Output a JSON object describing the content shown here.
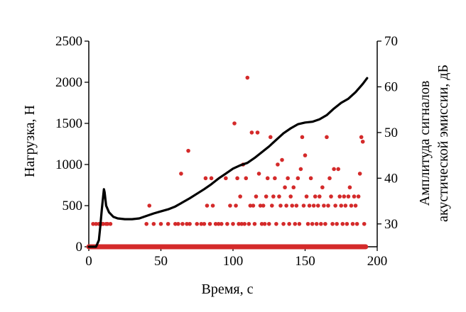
{
  "chart_data": {
    "type": "line",
    "title": "",
    "xlabel": "Время, с",
    "ylabel": "Нагрузка, Н",
    "y2label_lines": [
      "Амплитуда сигналов",
      "акустической эмиссии, дБ"
    ],
    "xlim": [
      0,
      200
    ],
    "ylim": [
      0,
      2500
    ],
    "y2lim": [
      25,
      70
    ],
    "xticks": [
      0,
      50,
      100,
      150,
      200
    ],
    "yticks": [
      0,
      500,
      1000,
      1500,
      2000,
      2500
    ],
    "y2ticks": [
      30,
      40,
      50,
      60,
      70
    ],
    "grid": false,
    "series": [
      {
        "role": "load",
        "axis": "left",
        "style": "line",
        "color": "#000000",
        "points": [
          [
            0,
            0
          ],
          [
            5,
            0
          ],
          [
            7,
            80
          ],
          [
            8,
            250
          ],
          [
            9,
            450
          ],
          [
            10,
            620
          ],
          [
            10.5,
            700
          ],
          [
            11,
            660
          ],
          [
            12,
            500
          ],
          [
            14,
            420
          ],
          [
            17,
            365
          ],
          [
            20,
            345
          ],
          [
            25,
            335
          ],
          [
            30,
            335
          ],
          [
            35,
            345
          ],
          [
            40,
            375
          ],
          [
            45,
            405
          ],
          [
            50,
            430
          ],
          [
            55,
            455
          ],
          [
            60,
            490
          ],
          [
            65,
            540
          ],
          [
            70,
            590
          ],
          [
            75,
            645
          ],
          [
            80,
            700
          ],
          [
            85,
            760
          ],
          [
            90,
            830
          ],
          [
            95,
            890
          ],
          [
            100,
            950
          ],
          [
            105,
            990
          ],
          [
            110,
            1020
          ],
          [
            115,
            1080
          ],
          [
            120,
            1150
          ],
          [
            125,
            1220
          ],
          [
            130,
            1300
          ],
          [
            135,
            1380
          ],
          [
            140,
            1440
          ],
          [
            145,
            1490
          ],
          [
            150,
            1510
          ],
          [
            155,
            1520
          ],
          [
            160,
            1550
          ],
          [
            165,
            1600
          ],
          [
            170,
            1680
          ],
          [
            175,
            1750
          ],
          [
            180,
            1800
          ],
          [
            185,
            1880
          ],
          [
            190,
            1980
          ],
          [
            193,
            2050
          ]
        ]
      },
      {
        "role": "acoustic_emission",
        "axis": "right",
        "style": "scatter",
        "color": "#d42a2a",
        "points": [
          [
            3,
            30
          ],
          [
            5,
            30
          ],
          [
            7,
            30
          ],
          [
            9,
            30
          ],
          [
            10,
            30
          ],
          [
            12,
            30
          ],
          [
            13,
            30
          ],
          [
            15,
            30
          ],
          [
            40,
            30
          ],
          [
            42,
            34
          ],
          [
            45,
            30
          ],
          [
            50,
            30
          ],
          [
            55,
            30
          ],
          [
            60,
            30
          ],
          [
            62,
            30
          ],
          [
            64,
            41
          ],
          [
            65,
            30
          ],
          [
            68,
            30
          ],
          [
            69,
            46
          ],
          [
            70,
            30
          ],
          [
            75,
            30
          ],
          [
            78,
            30
          ],
          [
            80,
            30
          ],
          [
            81,
            40
          ],
          [
            82,
            34
          ],
          [
            84,
            30
          ],
          [
            85,
            40
          ],
          [
            86,
            34
          ],
          [
            88,
            30
          ],
          [
            90,
            30
          ],
          [
            92,
            30
          ],
          [
            95,
            40
          ],
          [
            96,
            30
          ],
          [
            98,
            34
          ],
          [
            100,
            30
          ],
          [
            101,
            52
          ],
          [
            102,
            34
          ],
          [
            103,
            40
          ],
          [
            104,
            30
          ],
          [
            105,
            36
          ],
          [
            106,
            30
          ],
          [
            107,
            43
          ],
          [
            108,
            30
          ],
          [
            109,
            40
          ],
          [
            110,
            62
          ],
          [
            111,
            30
          ],
          [
            112,
            34
          ],
          [
            113,
            50
          ],
          [
            114,
            34
          ],
          [
            115,
            30
          ],
          [
            116,
            36
          ],
          [
            117,
            50
          ],
          [
            118,
            41
          ],
          [
            119,
            34
          ],
          [
            120,
            30
          ],
          [
            121,
            34
          ],
          [
            122,
            30
          ],
          [
            123,
            36
          ],
          [
            124,
            40
          ],
          [
            125,
            30
          ],
          [
            126,
            49
          ],
          [
            127,
            34
          ],
          [
            128,
            36
          ],
          [
            129,
            40
          ],
          [
            130,
            30
          ],
          [
            131,
            43
          ],
          [
            132,
            36
          ],
          [
            133,
            34
          ],
          [
            134,
            44
          ],
          [
            135,
            30
          ],
          [
            136,
            38
          ],
          [
            137,
            34
          ],
          [
            138,
            40
          ],
          [
            139,
            30
          ],
          [
            140,
            36
          ],
          [
            141,
            34
          ],
          [
            142,
            38
          ],
          [
            143,
            30
          ],
          [
            144,
            34
          ],
          [
            145,
            40
          ],
          [
            146,
            30
          ],
          [
            147,
            42
          ],
          [
            148,
            49
          ],
          [
            149,
            34
          ],
          [
            150,
            45
          ],
          [
            151,
            36
          ],
          [
            152,
            30
          ],
          [
            153,
            34
          ],
          [
            154,
            40
          ],
          [
            155,
            30
          ],
          [
            156,
            34
          ],
          [
            157,
            36
          ],
          [
            158,
            30
          ],
          [
            159,
            34
          ],
          [
            160,
            36
          ],
          [
            161,
            30
          ],
          [
            162,
            38
          ],
          [
            163,
            34
          ],
          [
            164,
            30
          ],
          [
            165,
            49
          ],
          [
            166,
            34
          ],
          [
            167,
            40
          ],
          [
            168,
            36
          ],
          [
            169,
            30
          ],
          [
            170,
            42
          ],
          [
            171,
            34
          ],
          [
            172,
            30
          ],
          [
            173,
            42
          ],
          [
            174,
            36
          ],
          [
            175,
            34
          ],
          [
            176,
            30
          ],
          [
            177,
            36
          ],
          [
            178,
            34
          ],
          [
            179,
            30
          ],
          [
            180,
            36
          ],
          [
            181,
            38
          ],
          [
            182,
            34
          ],
          [
            183,
            30
          ],
          [
            184,
            36
          ],
          [
            185,
            34
          ],
          [
            186,
            30
          ],
          [
            187,
            36
          ],
          [
            188,
            41
          ],
          [
            189,
            49
          ],
          [
            190,
            48
          ],
          [
            191,
            30
          ]
        ]
      },
      {
        "role": "acoustic_baseline",
        "axis": "right",
        "style": "band",
        "color": "#d42a2a",
        "x_range": [
          0,
          192
        ],
        "value": 25
      }
    ]
  }
}
